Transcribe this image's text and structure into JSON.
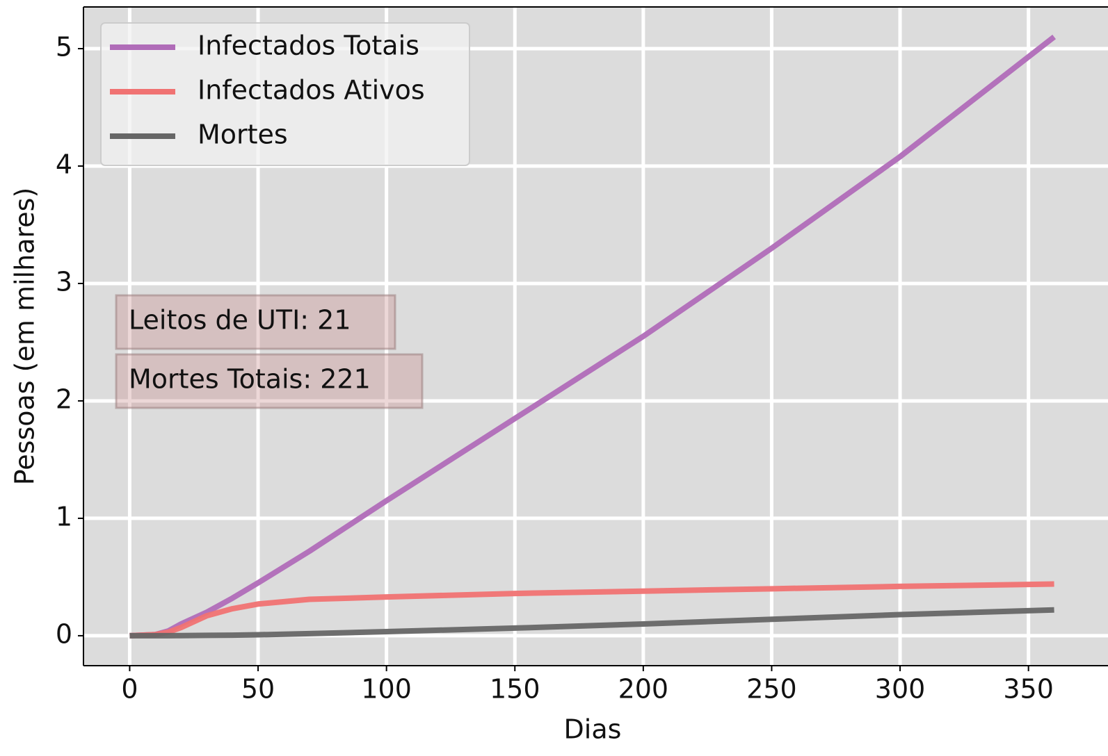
{
  "chart_data": {
    "type": "line",
    "xlabel": "Dias",
    "ylabel": "Pessoas (em milhares)",
    "x": [
      0,
      10,
      15,
      20,
      30,
      40,
      50,
      70,
      100,
      150,
      200,
      250,
      300,
      360
    ],
    "series": [
      {
        "name": "Infectados Totais",
        "color": "#b06cb8",
        "values": [
          0,
          0.01,
          0.04,
          0.1,
          0.2,
          0.32,
          0.45,
          0.72,
          1.15,
          1.85,
          2.55,
          3.3,
          4.08,
          5.1
        ]
      },
      {
        "name": "Infectados Ativos",
        "color": "#f07272",
        "values": [
          0,
          0.01,
          0.03,
          0.07,
          0.17,
          0.23,
          0.27,
          0.31,
          0.33,
          0.36,
          0.38,
          0.4,
          0.42,
          0.44
        ]
      },
      {
        "name": "Mortes",
        "color": "#666666",
        "values": [
          0,
          0,
          0,
          0.001,
          0.003,
          0.005,
          0.008,
          0.018,
          0.035,
          0.065,
          0.1,
          0.14,
          0.18,
          0.22
        ]
      }
    ],
    "annotations": [
      "Leitos de UTI: 21",
      "Mortes Totais: 221"
    ],
    "xlim": [
      -18,
      378
    ],
    "ylim": [
      -0.255,
      5.355
    ],
    "xticks": [
      0,
      50,
      100,
      150,
      200,
      250,
      300,
      350
    ],
    "yticks": [
      0,
      1,
      2,
      3,
      4,
      5
    ],
    "grid": true,
    "legend": "upper left"
  }
}
